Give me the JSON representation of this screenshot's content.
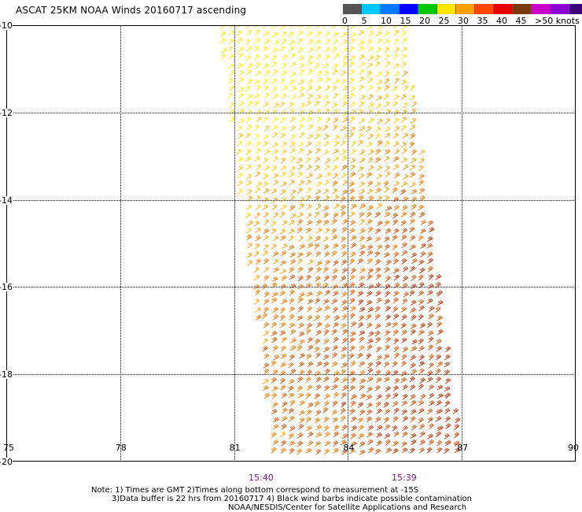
{
  "title": "ASCAT 25KM NOAA Winds 20160717 ascending",
  "colorbar": {
    "colors": [
      "#555555",
      "#00c8ff",
      "#0078ff",
      "#0000ff",
      "#00c800",
      "#ffe600",
      "#ffa000",
      "#ff4600",
      "#e60000",
      "#7a3a10",
      "#c800c8",
      "#8c00d2",
      "#3c007a"
    ],
    "labels": [
      "0",
      "5",
      "10",
      "15",
      "20",
      "25",
      "30",
      "35",
      "40",
      "45",
      ">50 knots"
    ]
  },
  "map": {
    "lat_labels": [
      "-10",
      "-12",
      "-14",
      "-16",
      "-18",
      "-20"
    ],
    "lon_labels": [
      "75",
      "78",
      "81",
      "84",
      "87",
      "90"
    ],
    "lon_range": [
      75,
      90
    ],
    "lat_range": [
      -10,
      -20
    ],
    "swath_polygon": [
      [
        80.5,
        -10
      ],
      [
        85.4,
        -10
      ],
      [
        87.0,
        -20
      ],
      [
        82.0,
        -20
      ]
    ],
    "barb_colors": [
      "#ffe600",
      "#ffc800",
      "#ffa000",
      "#ff7800",
      "#e65000",
      "#c83200"
    ]
  },
  "times": {
    "left": "15:40",
    "right": "15:39"
  },
  "notes": {
    "line1": "Note: 1) Times are GMT 2)Times along bottom correspond to measurement at -15S",
    "line2": "3)Data buffer is 22 hrs from 20160717 4) Black wind barbs indicate possible contamination",
    "line3": "NOAA/NESDIS/Center for Satellite Applications and Research"
  }
}
